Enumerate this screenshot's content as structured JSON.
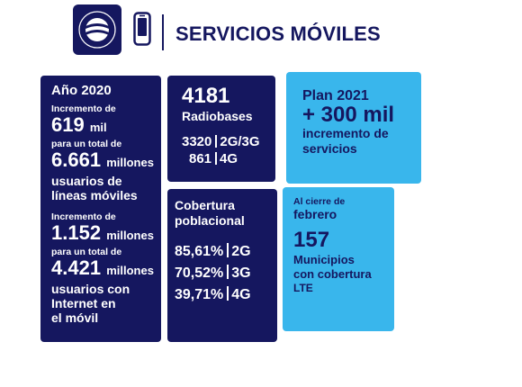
{
  "header": {
    "title": "SERVICIOS MÓVILES",
    "logo_icon": "etecsa-logo",
    "phone_icon": "mobile-phone-icon"
  },
  "colors": {
    "navy": "#15175f",
    "cyan": "#39b6ec",
    "background": "#ffffff"
  },
  "users": {
    "year": "Año 2020",
    "lines_prefix": "Incremento de",
    "lines_increment_value": "619",
    "lines_increment_unit": "mil",
    "lines_total_prefix": "para un total de",
    "lines_total_value": "6.661",
    "lines_total_unit": "millones",
    "lines_label_1": "usuarios de",
    "lines_label_2": "líneas móviles",
    "internet_prefix": "Incremento de",
    "internet_increment_value": "1.152",
    "internet_increment_unit": "millones",
    "internet_total_prefix_1": "para un total de",
    "internet_total_value": "4.421",
    "internet_total_unit": "millones",
    "internet_label_1": "usuarios con",
    "internet_label_2": "Internet en",
    "internet_label_3": "el móvil"
  },
  "radio": {
    "total": "4181",
    "label": "Radiobases",
    "rows": [
      {
        "value": "3320",
        "tech": "2G/3G"
      },
      {
        "value": "861",
        "tech": "4G"
      }
    ]
  },
  "plan": {
    "title": "Plan 2021",
    "value": "+ 300 mil",
    "label_1": "incremento de",
    "label_2": "servicios"
  },
  "coverage": {
    "title_1": "Cobertura",
    "title_2": "poblacional",
    "rows": [
      {
        "value": "85,61%",
        "tech": "2G"
      },
      {
        "value": "70,52%",
        "tech": "3G"
      },
      {
        "value": "39,71%",
        "tech": "4G"
      }
    ]
  },
  "municipalities": {
    "prefix": "Al cierre de",
    "month": "febrero",
    "value": "157",
    "label_1": "Municipios",
    "label_2": "con cobertura",
    "label_3": "LTE"
  }
}
